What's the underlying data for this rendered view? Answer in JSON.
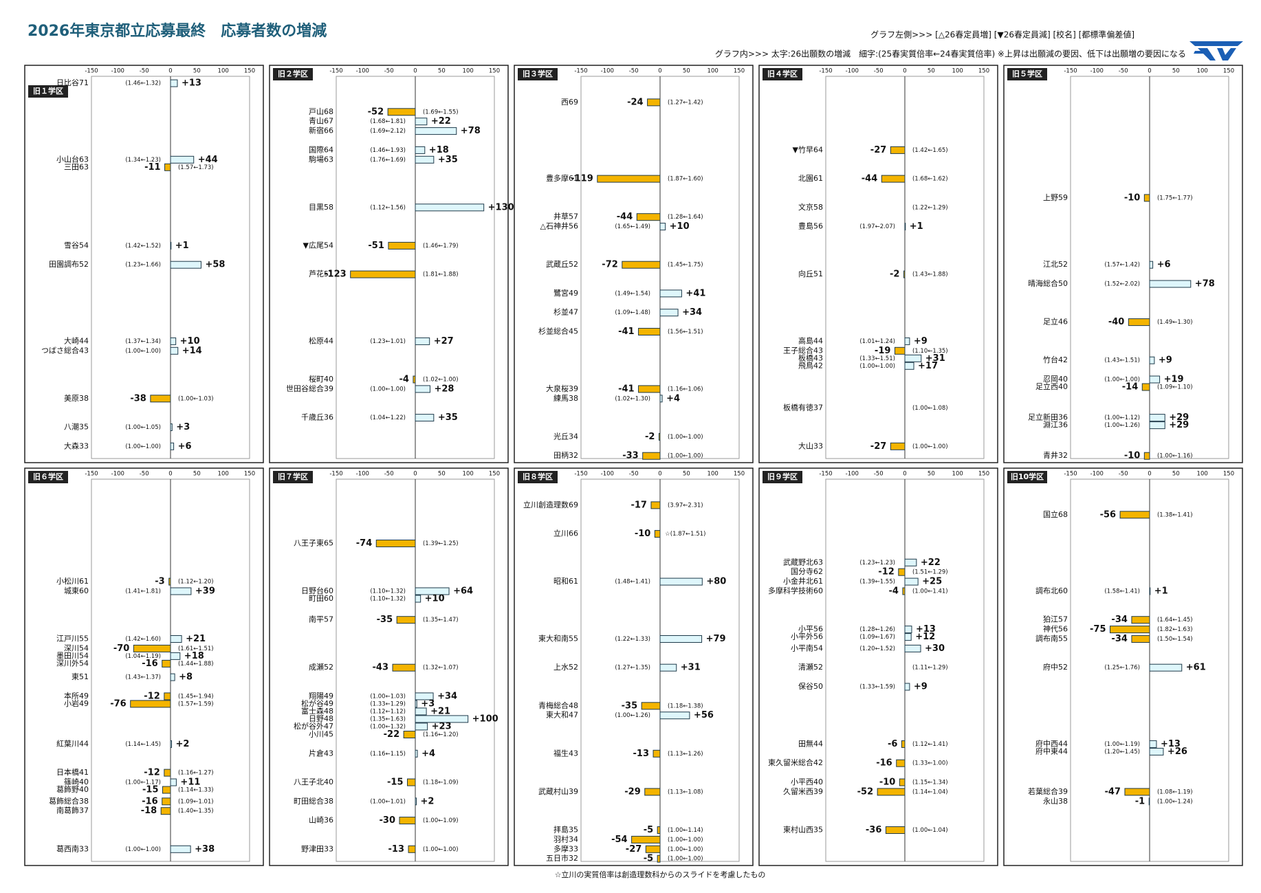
{
  "title": "2026年東京都立応募最終　応募者数の増減",
  "legend_left": "グラフ左側>>> [△26春定員増] [▼26春定員減] [校名] [都標準偏差値]",
  "legend_inner": "グラフ内>>>  太字:26出願数の増減　細字:(25春実質倍率←24春実質倍率) ※上昇は出願減の要因、低下は出願増の要因になる",
  "footnote": "☆立川の実質倍率は創造理数科からのスライドを考慮したもの",
  "chart_data": [
    {
      "type": "bar",
      "title": "旧１学区",
      "xlim": [
        -150,
        150
      ],
      "xticks": [
        -150,
        -100,
        -50,
        0,
        50,
        100,
        150
      ],
      "pos_color": "#def6fb",
      "neg_color": "#f4b400",
      "categories": [
        "日比谷71",
        "小山台63",
        "三田63",
        "雪谷54",
        "田園調布52",
        "大崎44",
        "つばさ総合43",
        "美原38",
        "八潮35",
        "大森33"
      ],
      "values": [
        13,
        44,
        -11,
        1,
        58,
        10,
        14,
        -38,
        3,
        6
      ],
      "value_labels": [
        "+13",
        "+44",
        "-11",
        "+1",
        "+58",
        "+10",
        "+14",
        "-38",
        "+3",
        "+6"
      ],
      "ratios": [
        "(1.46←1.32)",
        "(1.34←1.23)",
        "(1.57←1.73)",
        "(1.42←1.52)",
        "(1.23←1.66)",
        "(1.37←1.34)",
        "(1.00←1.00)",
        "(1.00←1.03)",
        "(1.00←1.05)",
        "(1.00←1.00)"
      ]
    },
    {
      "type": "bar",
      "title": "旧２学区",
      "xlim": [
        -150,
        150
      ],
      "xticks": [
        -150,
        -100,
        -50,
        0,
        50,
        100,
        150
      ],
      "pos_color": "#def6fb",
      "neg_color": "#f4b400",
      "categories": [
        "戸山68",
        "青山67",
        "新宿66",
        "国際64",
        "駒場63",
        "目黒58",
        "▼広尾54",
        "芦花51",
        "松原44",
        "桜町40",
        "世田谷総合39",
        "千歳丘36"
      ],
      "values": [
        -52,
        22,
        78,
        18,
        35,
        130,
        -51,
        -123,
        27,
        -4,
        28,
        35
      ],
      "value_labels": [
        "-52",
        "+22",
        "+78",
        "+18",
        "+35",
        "+130",
        "-51",
        "-123",
        "+27",
        "-4",
        "+28",
        "+35"
      ],
      "ratios": [
        "(1.69←1.55)",
        "(1.68←1.81)",
        "(1.69←2.12)",
        "(1.46←1.93)",
        "(1.76←1.69)",
        "(1.12←1.56)",
        "(1.46←1.79)",
        "(1.81←1.88)",
        "(1.23←1.01)",
        "(1.02←1.00)",
        "(1.00←1.00)",
        "(1.04←1.22)"
      ]
    },
    {
      "type": "bar",
      "title": "旧３学区",
      "xlim": [
        -150,
        150
      ],
      "xticks": [
        -150,
        -100,
        -50,
        0,
        50,
        100,
        150
      ],
      "pos_color": "#def6fb",
      "neg_color": "#f4b400",
      "categories": [
        "西69",
        "豊多摩61",
        "井草57",
        "△石神井56",
        "武蔵丘52",
        "鷺宮49",
        "杉並47",
        "杉並総合45",
        "大泉桜39",
        "練馬38",
        "光丘34",
        "田柄32"
      ],
      "values": [
        -24,
        -119,
        -44,
        10,
        -72,
        41,
        34,
        -41,
        -41,
        4,
        -2,
        -33
      ],
      "value_labels": [
        "-24",
        "-119",
        "-44",
        "+10",
        "-72",
        "+41",
        "+34",
        "-41",
        "-41",
        "+4",
        "-2",
        "-33"
      ],
      "ratios": [
        "(1.27←1.42)",
        "(1.87←1.60)",
        "(1.28←1.64)",
        "(1.65←1.49)",
        "(1.45←1.75)",
        "(1.49←1.54)",
        "(1.09←1.48)",
        "(1.56←1.51)",
        "(1.16←1.06)",
        "(1.02←1.30)",
        "(1.00←1.00)",
        "(1.00←1.00)"
      ]
    },
    {
      "type": "bar",
      "title": "旧４学区",
      "xlim": [
        -150,
        150
      ],
      "xticks": [
        -150,
        -100,
        -50,
        0,
        50,
        100,
        150
      ],
      "pos_color": "#def6fb",
      "neg_color": "#f4b400",
      "categories": [
        "▼竹早64",
        "北園61",
        "文京58",
        "豊島56",
        "向丘51",
        "高島44",
        "王子総合43",
        "板橋43",
        "飛鳥42",
        "板橋有徳37",
        "大山33"
      ],
      "values": [
        -27,
        -44,
        null,
        1,
        -2,
        9,
        -19,
        31,
        17,
        null,
        -27
      ],
      "value_labels": [
        "-27",
        "-44",
        null,
        "+1",
        "-2",
        "+9",
        "-19",
        "+31",
        "+17",
        null,
        "-27"
      ],
      "ratios": [
        "(1.42←1.65)",
        "(1.68←1.62)",
        "(1.22←1.29)",
        "(1.97←2.07)",
        "(1.43←1.88)",
        "(1.01←1.24)",
        "(1.10←1.35)",
        "(1.33←1.51)",
        "(1.00←1.00)",
        "(1.00←1.08)",
        "(1.00←1.00)"
      ]
    },
    {
      "type": "bar",
      "title": "旧５学区",
      "xlim": [
        -150,
        150
      ],
      "xticks": [
        -150,
        -100,
        -50,
        0,
        50,
        100,
        150
      ],
      "pos_color": "#def6fb",
      "neg_color": "#f4b400",
      "categories": [
        "上野59",
        "江北52",
        "晴海総合50",
        "足立46",
        "竹台42",
        "忍岡40",
        "足立西40",
        "足立新田36",
        "淵江36",
        "青井32"
      ],
      "values": [
        -10,
        6,
        78,
        -40,
        9,
        19,
        -14,
        29,
        29,
        -10
      ],
      "value_labels": [
        "-10",
        "+6",
        "+78",
        "-40",
        "+9",
        "+19",
        "-14",
        "+29",
        "+29",
        "-10"
      ],
      "ratios": [
        "(1.75←1.77)",
        "(1.57←1.42)",
        "(1.52←2.02)",
        "(1.49←1.30)",
        "(1.43←1.51)",
        "(1.00←1.00)",
        "(1.09←1.10)",
        "(1.00←1.12)",
        "(1.00←1.26)",
        "(1.00←1.16)"
      ]
    },
    {
      "type": "bar",
      "title": "旧６学区",
      "xlim": [
        -150,
        150
      ],
      "xticks": [
        -150,
        -100,
        -50,
        0,
        50,
        100,
        150
      ],
      "pos_color": "#def6fb",
      "neg_color": "#f4b400",
      "categories": [
        "小松川61",
        "城東60",
        "江戸川55",
        "深川54",
        "墨田川54",
        "深川外54",
        "東51",
        "本所49",
        "小岩49",
        "紅葉川44",
        "日本橋41",
        "篠崎40",
        "葛飾野40",
        "葛飾総合38",
        "南葛飾37",
        "葛西南33"
      ],
      "values": [
        -3,
        39,
        21,
        -70,
        18,
        -16,
        8,
        -12,
        -76,
        2,
        -12,
        11,
        -15,
        -16,
        -18,
        38
      ],
      "value_labels": [
        "-3",
        "+39",
        "+21",
        "-70",
        "+18",
        "-16",
        "+8",
        "-12",
        "-76",
        "+2",
        "-12",
        "+11",
        "-15",
        "-16",
        "-18",
        "+38"
      ],
      "ratios": [
        "(1.12←1.20)",
        "(1.41←1.81)",
        "(1.42←1.60)",
        "(1.61←1.51)",
        "(1.04←1.19)",
        "(1.44←1.88)",
        "(1.43←1.37)",
        "(1.45←1.94)",
        "(1.57←1.59)",
        "(1.14←1.45)",
        "(1.16←1.27)",
        "(1.00←1.17)",
        "(1.14←1.33)",
        "(1.09←1.01)",
        "(1.40←1.35)",
        "(1.00←1.00)"
      ]
    },
    {
      "type": "bar",
      "title": "旧７学区",
      "xlim": [
        -150,
        150
      ],
      "xticks": [
        -150,
        -100,
        -50,
        0,
        50,
        100,
        150
      ],
      "pos_color": "#def6fb",
      "neg_color": "#f4b400",
      "categories": [
        "八王子東65",
        "日野台60",
        "町田60",
        "南平57",
        "成瀬52",
        "翔陽49",
        "松が谷49",
        "富士森48",
        "日野48",
        "松が谷外47",
        "小川45",
        "片倉43",
        "八王子北40",
        "町田総合38",
        "山崎36",
        "野津田33"
      ],
      "values": [
        -74,
        64,
        10,
        -35,
        -43,
        34,
        3,
        21,
        100,
        23,
        -22,
        4,
        -15,
        2,
        -30,
        -13
      ],
      "value_labels": [
        "-74",
        "+64",
        "+10",
        "-35",
        "-43",
        "+34",
        "+3",
        "+21",
        "+100",
        "+23",
        "-22",
        "+4",
        "-15",
        "+2",
        "-30",
        "-13"
      ],
      "ratios": [
        "(1.39←1.25)",
        "(1.10←1.32)",
        "(1.10←1.32)",
        "(1.35←1.47)",
        "(1.32←1.07)",
        "(1.00←1.03)",
        "(1.33←1.29)",
        "(1.12←1.12)",
        "(1.35←1.63)",
        "(1.00←1.32)",
        "(1.16←1.20)",
        "(1.16←1.15)",
        "(1.18←1.09)",
        "(1.00←1.01)",
        "(1.00←1.09)",
        "(1.00←1.00)"
      ]
    },
    {
      "type": "bar",
      "title": "旧８学区",
      "xlim": [
        -150,
        150
      ],
      "xticks": [
        -150,
        -100,
        -50,
        0,
        50,
        100,
        150
      ],
      "pos_color": "#def6fb",
      "neg_color": "#f4b400",
      "categories": [
        "立川創造理数69",
        "立川66",
        "昭和61",
        "東大和南55",
        "上水52",
        "青梅総合48",
        "東大和47",
        "福生43",
        "武蔵村山39",
        "拝島35",
        "羽村34",
        "多摩33",
        "五日市32"
      ],
      "values": [
        -17,
        -10,
        80,
        79,
        31,
        -35,
        56,
        -13,
        -29,
        -5,
        -54,
        -27,
        -5
      ],
      "value_labels": [
        "-17",
        "-10",
        "+80",
        "+79",
        "+31",
        "-35",
        "+56",
        "-13",
        "-29",
        "-5",
        "-54",
        "-27",
        "-5"
      ],
      "ratios": [
        "(3.97←2.31)",
        "☆(1.87←1.51)",
        "(1.48←1.41)",
        "(1.22←1.33)",
        "(1.27←1.35)",
        "(1.18←1.38)",
        "(1.00←1.26)",
        "(1.13←1.26)",
        "(1.13←1.08)",
        "(1.00←1.14)",
        "(1.00←1.00)",
        "(1.00←1.00)",
        "(1.00←1.00)"
      ]
    },
    {
      "type": "bar",
      "title": "旧９学区",
      "xlim": [
        -150,
        150
      ],
      "xticks": [
        -150,
        -100,
        -50,
        0,
        50,
        100,
        150
      ],
      "pos_color": "#def6fb",
      "neg_color": "#f4b400",
      "categories": [
        "武蔵野北63",
        "国分寺62",
        "小金井北61",
        "多摩科学技術60",
        "小平56",
        "小平外56",
        "小平南54",
        "清瀬52",
        "保谷50",
        "田無44",
        "東久留米総合42",
        "小平西40",
        "久留米西39",
        "東村山西35"
      ],
      "values": [
        22,
        -12,
        25,
        -4,
        13,
        12,
        30,
        null,
        9,
        -6,
        -16,
        -10,
        -52,
        -36
      ],
      "value_labels": [
        "+22",
        "-12",
        "+25",
        "-4",
        "+13",
        "+12",
        "+30",
        null,
        "+9",
        "-6",
        "-16",
        "-10",
        "-52",
        "-36"
      ],
      "ratios": [
        "(1.23←1.23)",
        "(1.51←1.29)",
        "(1.39←1.55)",
        "(1.00←1.41)",
        "(1.28←1.26)",
        "(1.09←1.67)",
        "(1.20←1.52)",
        "(1.11←1.29)",
        "(1.33←1.59)",
        "(1.12←1.41)",
        "(1.33←1.00)",
        "(1.15←1.34)",
        "(1.14←1.04)",
        "(1.00←1.04)"
      ]
    },
    {
      "type": "bar",
      "title": "旧10学区",
      "xlim": [
        -150,
        150
      ],
      "xticks": [
        -150,
        -100,
        -50,
        0,
        50,
        100,
        150
      ],
      "pos_color": "#def6fb",
      "neg_color": "#f4b400",
      "categories": [
        "国立68",
        "調布北60",
        "狛江57",
        "神代56",
        "調布南55",
        "府中52",
        "府中西44",
        "府中東44",
        "若葉総合39",
        "永山38"
      ],
      "values": [
        -56,
        1,
        -34,
        -75,
        -34,
        61,
        13,
        26,
        -47,
        -1
      ],
      "value_labels": [
        "-56",
        "+1",
        "-34",
        "-75",
        "-34",
        "+61",
        "+13",
        "+26",
        "-47",
        "-1"
      ],
      "ratios": [
        "(1.38←1.41)",
        "(1.58←1.41)",
        "(1.64←1.45)",
        "(1.82←1.63)",
        "(1.50←1.54)",
        "(1.25←1.76)",
        "(1.00←1.19)",
        "(1.20←1.45)",
        "(1.08←1.19)",
        "(1.00←1.24)"
      ]
    }
  ]
}
